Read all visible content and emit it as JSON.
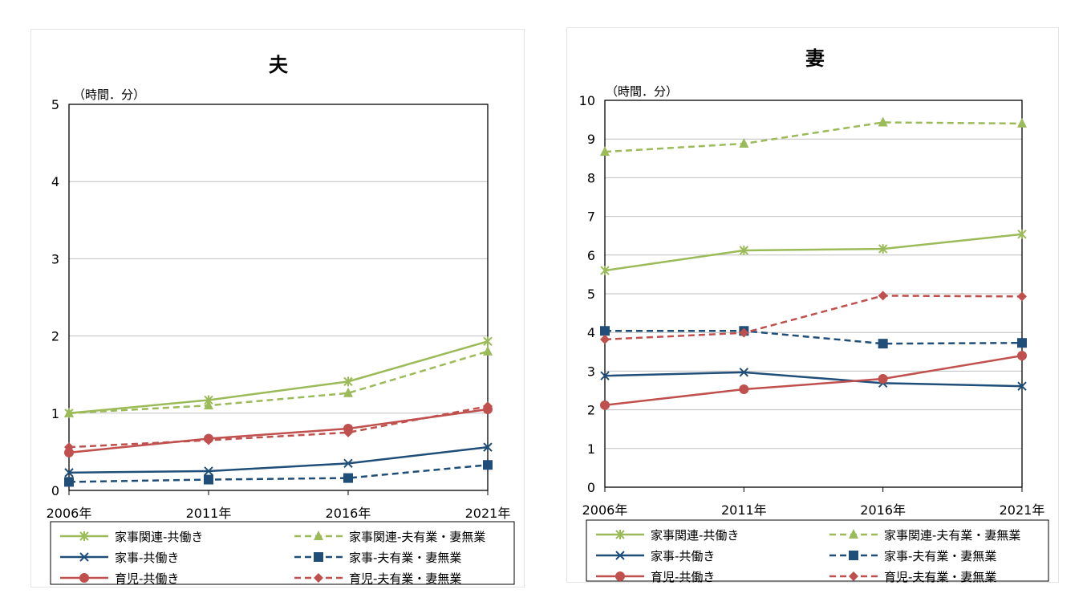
{
  "chart_data": [
    {
      "type": "line",
      "title": "夫",
      "unit_label": "（時間．分）",
      "categories": [
        "2006年",
        "2011年",
        "2016年",
        "2021年"
      ],
      "ylim": [
        0,
        5
      ],
      "yticks": [
        "0",
        "1",
        "2",
        "3",
        "4",
        "5"
      ],
      "grid": true,
      "legend_position": "bottom",
      "series": [
        {
          "name": "家事関連‐共働き",
          "values": [
            1.0,
            1.17,
            1.41,
            1.93
          ],
          "color": "#9bbb59",
          "dash": false,
          "marker": "asterisk"
        },
        {
          "name": "家事関連‐夫有業・妻無業",
          "values": [
            1.0,
            1.1,
            1.26,
            1.8
          ],
          "color": "#9bbb59",
          "dash": true,
          "marker": "triangle"
        },
        {
          "name": "家事‐共働き",
          "values": [
            0.23,
            0.25,
            0.35,
            0.56
          ],
          "color": "#1f4e79",
          "dash": false,
          "marker": "x"
        },
        {
          "name": "家事‐夫有業・妻無業",
          "values": [
            0.11,
            0.14,
            0.16,
            0.33
          ],
          "color": "#1f4e79",
          "dash": true,
          "marker": "square"
        },
        {
          "name": "育児‐共働き",
          "values": [
            0.49,
            0.67,
            0.8,
            1.05
          ],
          "color": "#c0504d",
          "dash": false,
          "marker": "circle"
        },
        {
          "name": "育児‐夫有業・妻無業",
          "values": [
            0.56,
            0.65,
            0.75,
            1.09
          ],
          "color": "#c0504d",
          "dash": true,
          "marker": "diamond"
        }
      ]
    },
    {
      "type": "line",
      "title": "妻",
      "unit_label": "（時間．分）",
      "categories": [
        "2006年",
        "2011年",
        "2016年",
        "2021年"
      ],
      "ylim": [
        0,
        10
      ],
      "yticks": [
        "0",
        "1",
        "2",
        "3",
        "4",
        "5",
        "6",
        "7",
        "8",
        "9",
        "10"
      ],
      "grid": true,
      "legend_position": "bottom",
      "series": [
        {
          "name": "家事関連‐共働き",
          "values": [
            5.6,
            6.12,
            6.16,
            6.54
          ],
          "color": "#9bbb59",
          "dash": false,
          "marker": "asterisk"
        },
        {
          "name": "家事関連‐夫有業・妻無業",
          "values": [
            8.67,
            8.88,
            9.43,
            9.4
          ],
          "color": "#9bbb59",
          "dash": true,
          "marker": "triangle"
        },
        {
          "name": "家事‐共働き",
          "values": [
            2.88,
            2.97,
            2.69,
            2.61
          ],
          "color": "#1f4e79",
          "dash": false,
          "marker": "x"
        },
        {
          "name": "家事‐夫有業・妻無業",
          "values": [
            4.04,
            4.04,
            3.71,
            3.73
          ],
          "color": "#1f4e79",
          "dash": true,
          "marker": "square"
        },
        {
          "name": "育児‐共働き",
          "values": [
            2.12,
            2.53,
            2.8,
            3.4
          ],
          "color": "#c0504d",
          "dash": false,
          "marker": "circle"
        },
        {
          "name": "育児‐夫有業・妻無業",
          "values": [
            3.82,
            3.99,
            4.95,
            4.93
          ],
          "color": "#c0504d",
          "dash": true,
          "marker": "diamond"
        }
      ]
    }
  ]
}
